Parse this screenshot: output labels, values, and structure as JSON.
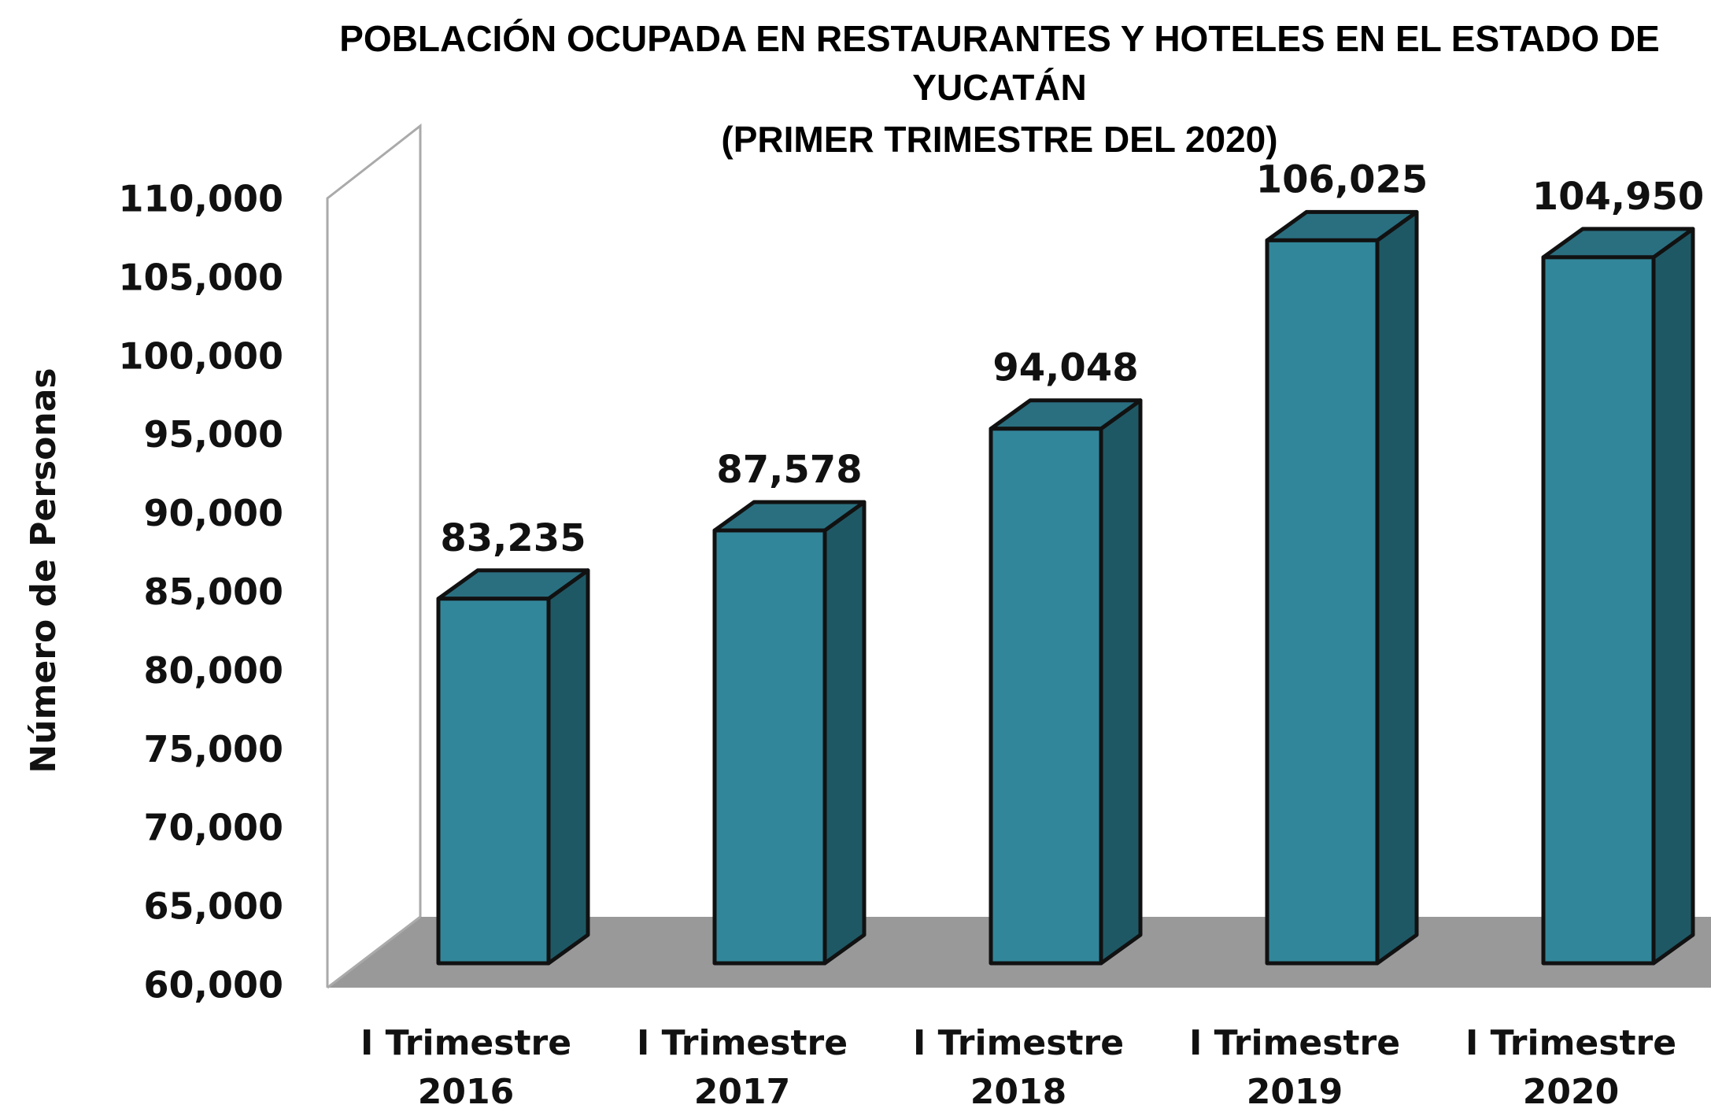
{
  "chart_data": {
    "type": "bar3d",
    "title": "POBLACIÓN OCUPADA EN RESTAURANTES Y HOTELES EN EL ESTADO DE YUCATÁN",
    "subtitle": "(PRIMER TRIMESTRE DEL 2020)",
    "y_label": "Número de Personas",
    "categories": [
      "I Trimestre 2016",
      "I Trimestre 2017",
      "I Trimestre 2018",
      "I Trimestre 2019",
      "I Trimestre 2020"
    ],
    "values": [
      83235,
      87578,
      94048,
      106025,
      104950
    ],
    "value_labels": [
      "83,235",
      "87,578",
      "94,048",
      "106,025",
      "104,950"
    ],
    "color": "#32869a",
    "ylim": [
      60000,
      110000
    ],
    "yticks": [
      {
        "value": 60000,
        "label": "60,000"
      },
      {
        "value": 65000,
        "label": "65,000"
      },
      {
        "value": 70000,
        "label": "70,000"
      },
      {
        "value": 75000,
        "label": "75,000"
      },
      {
        "value": 80000,
        "label": "80,000"
      },
      {
        "value": 85000,
        "label": "85,000"
      },
      {
        "value": 90000,
        "label": "90,000"
      },
      {
        "value": 95000,
        "label": "95,000"
      },
      {
        "value": 100000,
        "label": "100,000"
      },
      {
        "value": 105000,
        "label": "105,000"
      },
      {
        "value": 110000,
        "label": "110,000"
      }
    ]
  }
}
